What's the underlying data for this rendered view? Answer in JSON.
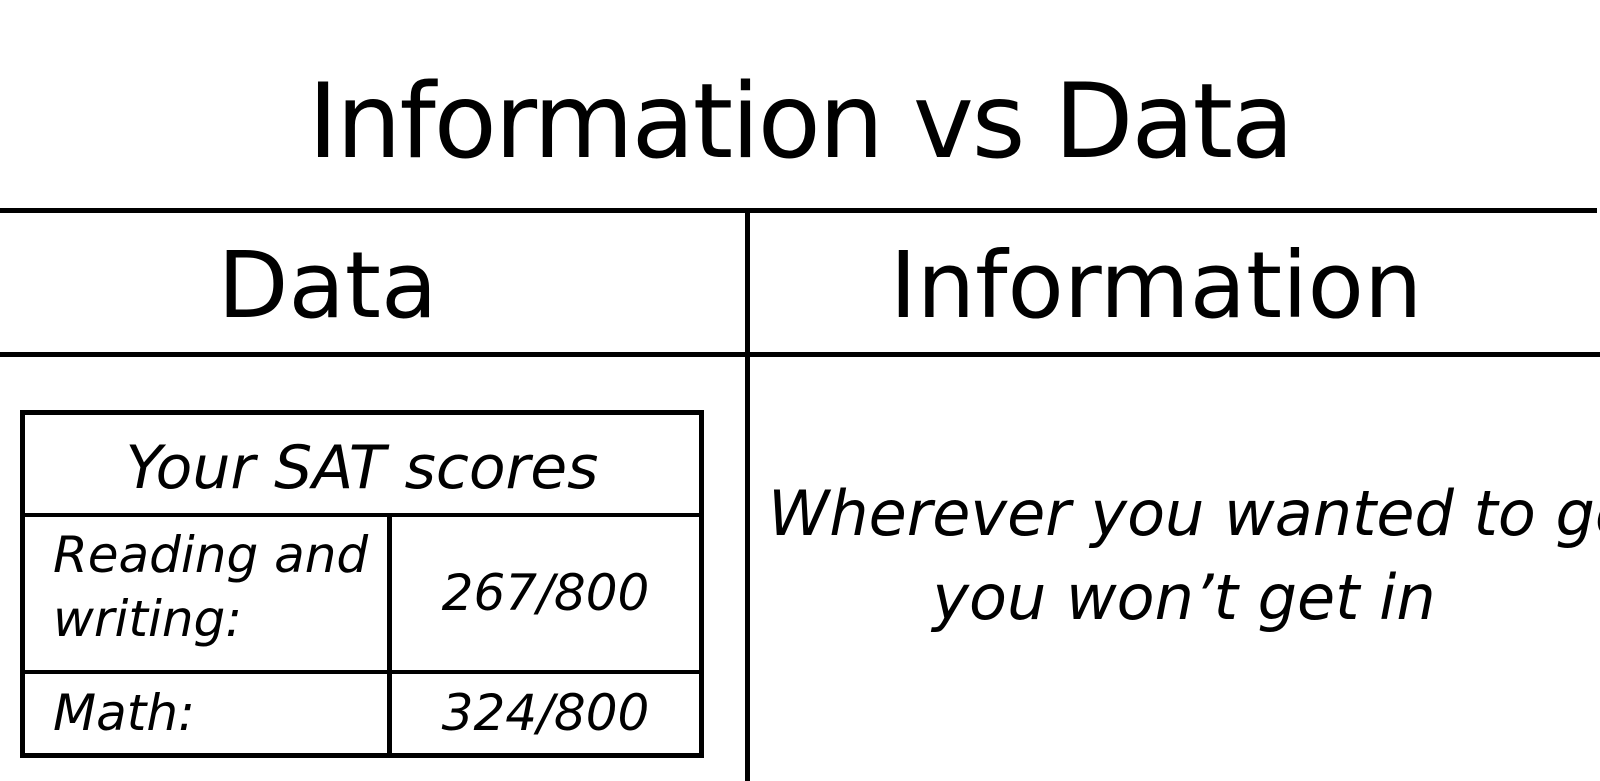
{
  "title": "Information vs Data",
  "columns": {
    "left_header": "Data",
    "right_header": "Information"
  },
  "score_card": {
    "title": "Your SAT scores",
    "rows": [
      {
        "label_line1": "Reading and",
        "label_line2": "writing:",
        "value": "267/800"
      },
      {
        "label_line1": "Math:",
        "value": "324/800"
      }
    ]
  },
  "information": {
    "line1": "Wherever you wanted to go,",
    "line2": "you won’t get in"
  }
}
